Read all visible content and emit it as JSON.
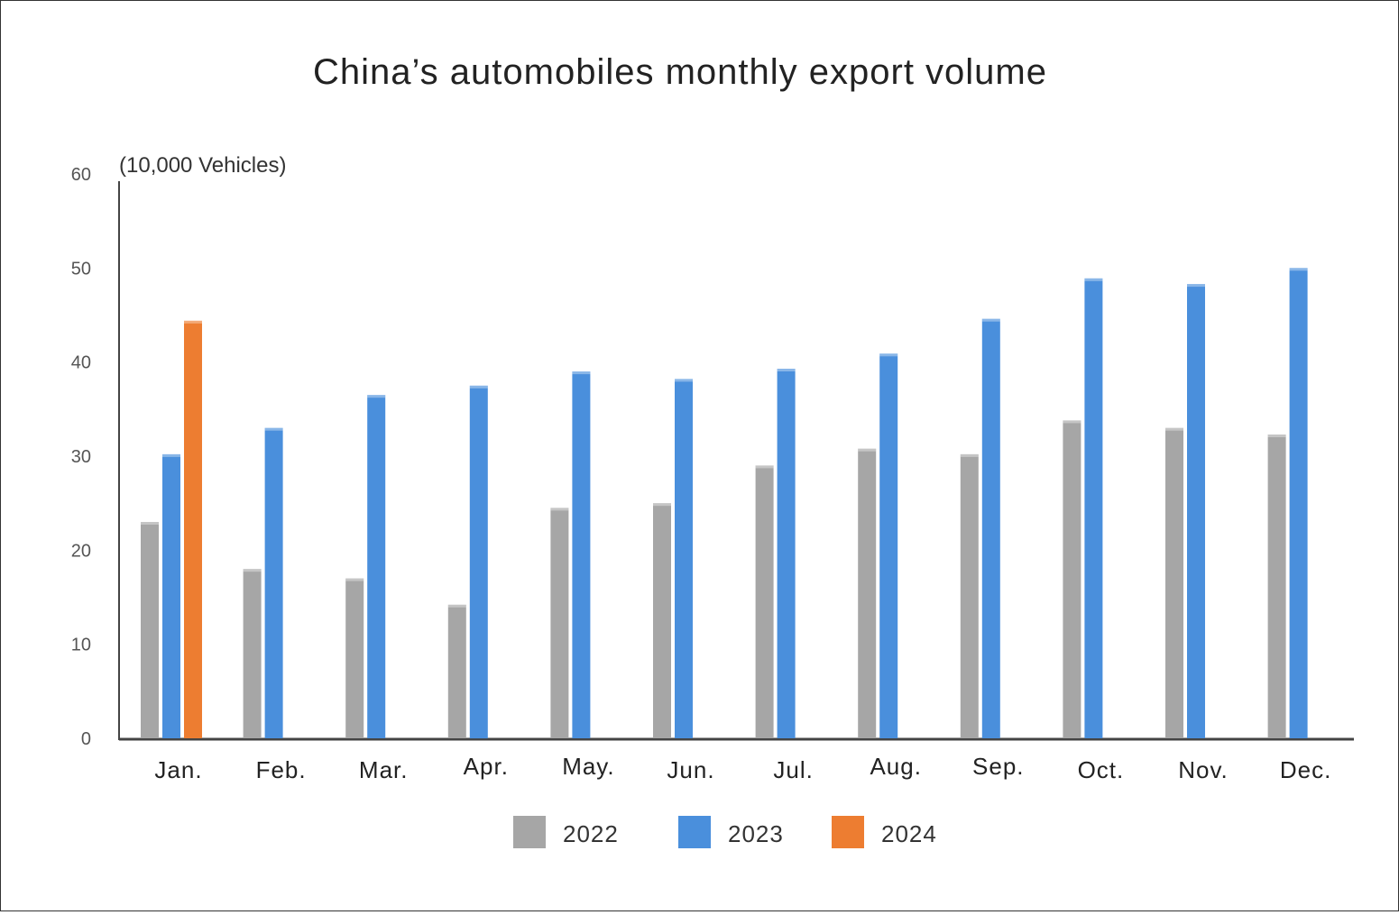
{
  "chart_data": {
    "type": "bar",
    "title": "China’s automobiles monthly export volume",
    "unit_label": "(10,000 Vehicles)",
    "ylim": [
      0,
      60
    ],
    "yticks": [
      0,
      10,
      20,
      30,
      40,
      50,
      60
    ],
    "categories": [
      "Jan.",
      "Feb.",
      "Mar.",
      "Apr.",
      "May.",
      "Jun.",
      "Jul.",
      "Aug.",
      "Sep.",
      "Oct.",
      "Nov.",
      "Dec."
    ],
    "series": [
      {
        "name": "2022",
        "color": "#a6a6a6",
        "values": [
          23,
          18,
          17,
          14.2,
          24.5,
          25,
          29,
          30.8,
          30.2,
          33.8,
          33,
          32.3
        ]
      },
      {
        "name": "2023",
        "color": "#4a8fdc",
        "values": [
          30.2,
          33,
          36.5,
          37.5,
          39,
          38.2,
          39.3,
          40.9,
          44.6,
          48.9,
          48.3,
          50
        ]
      },
      {
        "name": "2024",
        "color": "#ed7d31",
        "values": [
          44.4,
          null,
          null,
          null,
          null,
          null,
          null,
          null,
          null,
          null,
          null,
          null
        ]
      }
    ],
    "legend_position": "bottom",
    "grid": false
  }
}
